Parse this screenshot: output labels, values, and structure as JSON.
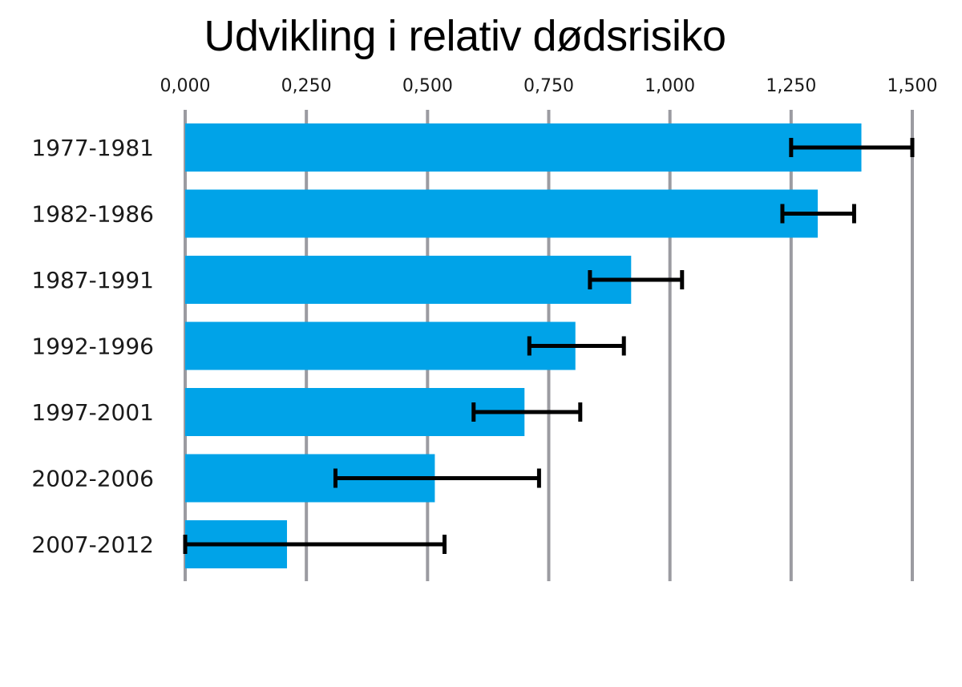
{
  "chart_data": {
    "type": "bar",
    "orientation": "horizontal",
    "title": "Udvikling i relativ dødsrisiko",
    "xlabel": "",
    "ylabel": "",
    "xlim": [
      0,
      1.5
    ],
    "x_ticks": [
      0,
      0.25,
      0.5,
      0.75,
      1.0,
      1.25,
      1.5
    ],
    "x_tick_labels": [
      "0,000",
      "0,250",
      "0,500",
      "0,750",
      "1,000",
      "1,250",
      "1,500"
    ],
    "grid": true,
    "categories": [
      "1977-1981",
      "1982-1986",
      "1987-1991",
      "1992-1996",
      "1997-2001",
      "2002-2006",
      "2007-2012"
    ],
    "series": [
      {
        "values": [
          1.395,
          1.305,
          0.92,
          0.805,
          0.7,
          0.515,
          0.21
        ],
        "error_low": [
          1.25,
          1.232,
          0.835,
          0.71,
          0.595,
          0.31,
          0.0
        ],
        "error_high": [
          1.5,
          1.38,
          1.025,
          0.905,
          0.815,
          0.73,
          0.535
        ]
      }
    ],
    "colors": {
      "bar": "#00A3E8",
      "grid": "#9B9BA1",
      "error_bar": "#000000"
    }
  }
}
